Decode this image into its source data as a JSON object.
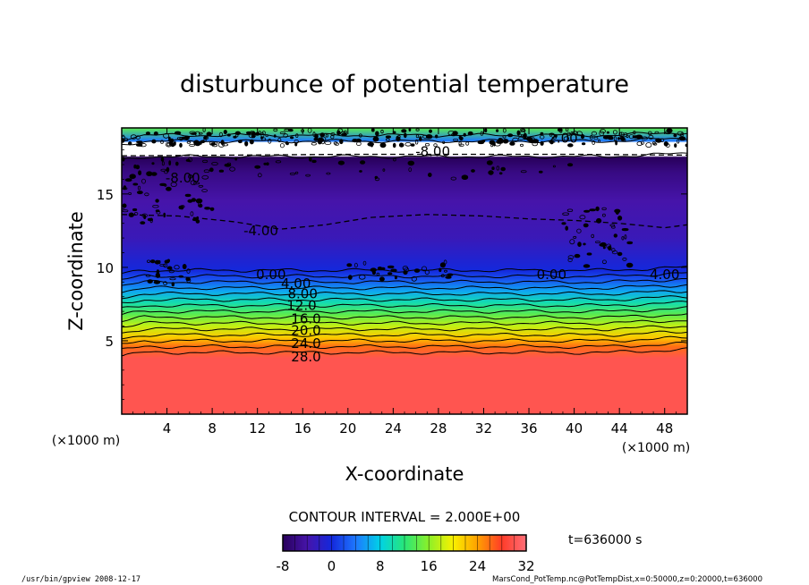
{
  "chart_data": {
    "type": "heatmap",
    "title": "disturbunce of potential temperature",
    "xlabel": "X-coordinate",
    "ylabel": "Z-coordinate",
    "x_unit": "(×1000 m)",
    "y_unit": "(×1000 m)",
    "xlim": [
      0,
      50
    ],
    "ylim": [
      0,
      19.5
    ],
    "x_ticks": [
      4,
      8,
      12,
      16,
      20,
      24,
      28,
      32,
      36,
      40,
      44,
      48
    ],
    "y_ticks": [
      5,
      10,
      15
    ],
    "contour_interval_text": "CONTOUR INTERVAL = 2.000E+00",
    "time_text": "t=636000 s",
    "colorbar": {
      "min": -8,
      "max": 32,
      "ticks": [
        -8,
        0,
        8,
        16,
        24,
        32
      ]
    },
    "profile": [
      {
        "z": 0.0,
        "value": 30
      },
      {
        "z": 3.8,
        "value": 30
      },
      {
        "z": 4.6,
        "value": 26
      },
      {
        "z": 5.2,
        "value": 22
      },
      {
        "z": 6.0,
        "value": 18
      },
      {
        "z": 6.8,
        "value": 14
      },
      {
        "z": 7.6,
        "value": 10
      },
      {
        "z": 8.4,
        "value": 6
      },
      {
        "z": 9.2,
        "value": 2
      },
      {
        "z": 9.8,
        "value": 0
      },
      {
        "z": 12.0,
        "value": -3
      },
      {
        "z": 14.5,
        "value": -4
      },
      {
        "z": 16.5,
        "value": -6
      },
      {
        "z": 17.5,
        "value": -8
      },
      {
        "z": 17.6,
        "value": -10
      },
      {
        "z": 18.5,
        "value": -10
      },
      {
        "z": 18.6,
        "value": 4
      },
      {
        "z": 19.5,
        "value": 14
      }
    ],
    "contour_labels": [
      {
        "text": "28.0",
        "x": 16.3,
        "z": 3.9
      },
      {
        "text": "24.0",
        "x": 16.3,
        "z": 4.8
      },
      {
        "text": "20.0",
        "x": 16.3,
        "z": 5.7
      },
      {
        "text": "16.0",
        "x": 16.3,
        "z": 6.5
      },
      {
        "text": "12.0",
        "x": 15.9,
        "z": 7.4
      },
      {
        "text": "8.00",
        "x": 16.0,
        "z": 8.2
      },
      {
        "text": "4.00",
        "x": 15.4,
        "z": 8.9
      },
      {
        "text": "0.00",
        "x": 13.2,
        "z": 9.5
      },
      {
        "text": "0.00",
        "x": 38.0,
        "z": 9.5
      },
      {
        "text": "4.00",
        "x": 48.0,
        "z": 9.5
      },
      {
        "text": "-4.00",
        "x": 12.3,
        "z": 12.5
      },
      {
        "text": "-8.00",
        "x": 27.5,
        "z": 17.9
      },
      {
        "text": "-8.00",
        "x": 5.4,
        "z": 16.1
      },
      {
        "text": "2.00",
        "x": 39.0,
        "z": 18.8
      }
    ],
    "dashed_contours": [
      {
        "name": "-4.00",
        "points": [
          [
            0,
            13.6
          ],
          [
            5,
            13.5
          ],
          [
            10,
            13.1
          ],
          [
            14,
            12.6
          ],
          [
            18,
            12.9
          ],
          [
            22,
            13.4
          ],
          [
            27,
            13.6
          ],
          [
            32,
            13.5
          ],
          [
            36,
            13.3
          ],
          [
            40,
            13.2
          ],
          [
            44,
            13.0
          ],
          [
            48,
            12.7
          ],
          [
            50,
            12.9
          ]
        ]
      },
      {
        "name": "-8.00",
        "points": [
          [
            0,
            17.6
          ],
          [
            10,
            17.65
          ],
          [
            20,
            17.7
          ],
          [
            30,
            17.7
          ],
          [
            40,
            17.7
          ],
          [
            50,
            17.65
          ]
        ]
      }
    ]
  },
  "footer": {
    "left": "/usr/bin/gpview   2008-12-17",
    "right": "MarsCond_PotTemp.nc@PotTempDist,x=0:50000,z=0:20000,t=636000"
  }
}
